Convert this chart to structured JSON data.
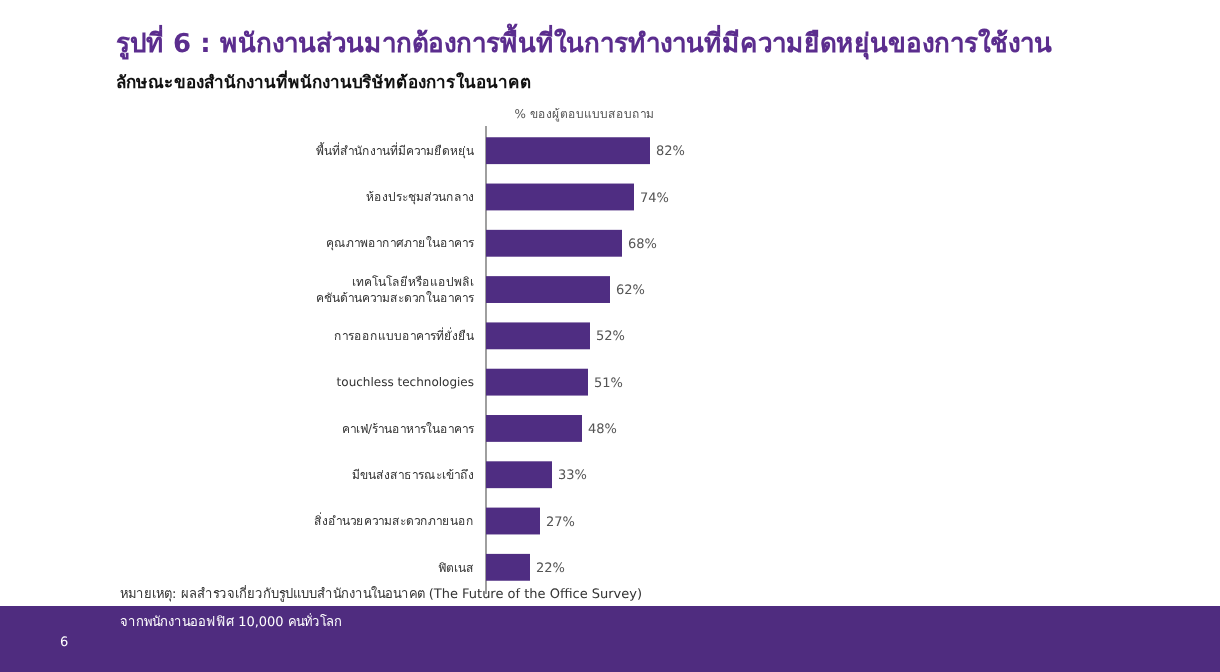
{
  "chart_data": {
    "type": "bar",
    "orientation": "horizontal",
    "title": "รูปที่ 6 : พนักงานส่วนมากต้องการพื้นที่ในการทำงานที่มีความยืดหยุ่นของการใช้งาน",
    "subtitle": "ลักษณะของสำนักงานที่พนักงานบริษัทต้องการในอนาคต",
    "xlabel": "% ของผู้ตอบแบบสอบถาม",
    "categories": [
      "พื้นที่สำนักงานที่มีความยืดหยุ่น",
      "ห้องประชุมส่วนกลาง",
      "คุณภาพอากาศภายในอาคาร",
      "เทคโนโลยีหรือแอปพลิเคชันด้านความสะดวกในอาคาร",
      "การออกแบบอาคารที่ยั่งยืน",
      "touchless technologies",
      "คาเฟ่/ร้านอาหารในอาคาร",
      "มีขนส่งสาธารณะเข้าถึง",
      "สิ่งอำนวยความสะดวกภายนอก",
      "ฟิตเนส"
    ],
    "values": [
      82,
      74,
      68,
      62,
      52,
      51,
      48,
      33,
      27,
      22
    ],
    "value_labels": [
      "82%",
      "74%",
      "68%",
      "62%",
      "52%",
      "51%",
      "48%",
      "33%",
      "27%",
      "22%"
    ],
    "color": "#4f2d82",
    "annotations": [
      "หมายเหตุ: ผลสำรวจเกี่ยวกับรูปแบบสำนักงานในอนาคต (The Future of the Office Survey)",
      "จากพนักงานออฟฟิศ 10,000 คนทั่วโลก",
      "6"
    ]
  }
}
